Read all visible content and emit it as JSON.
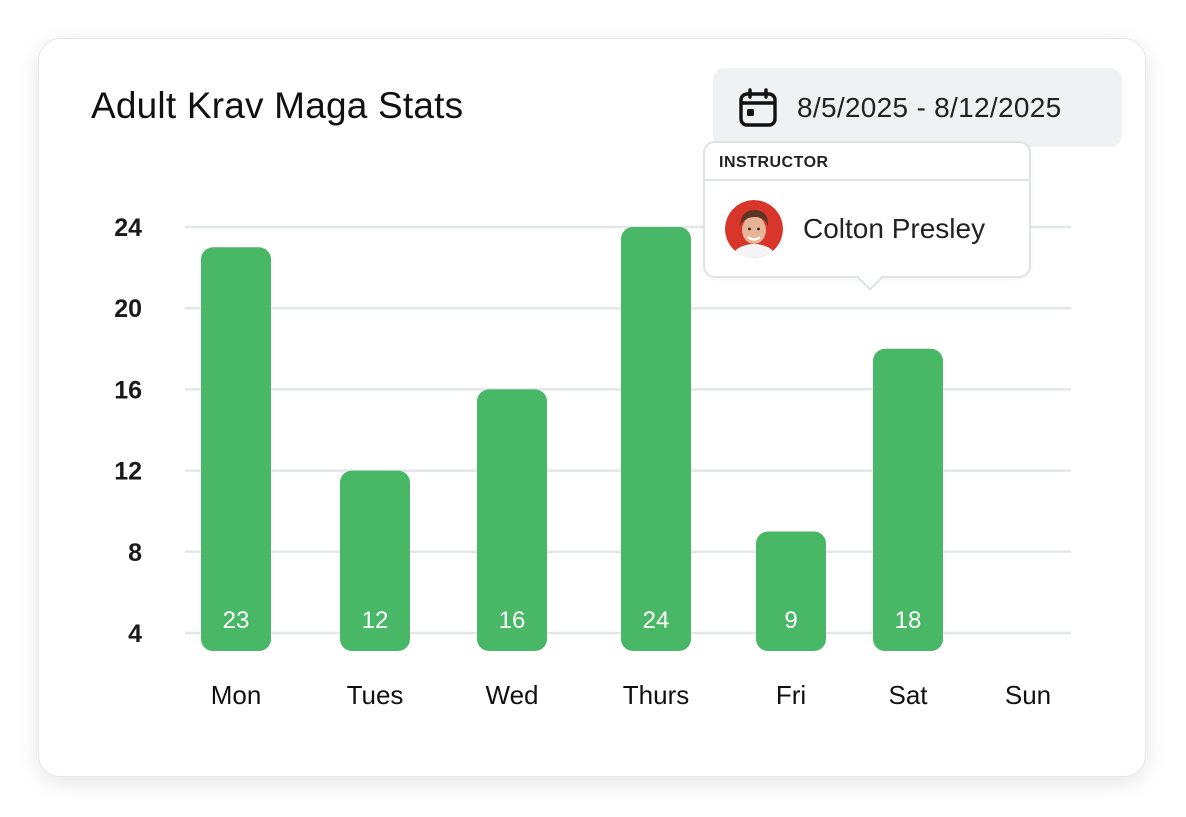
{
  "header": {
    "title": "Adult Krav Maga Stats",
    "date_range": "8/5/2025 - 8/12/2025",
    "date_icon": "calendar-icon"
  },
  "tooltip": {
    "label": "INSTRUCTOR",
    "name": "Colton Presley"
  },
  "colors": {
    "bar": "#49b866",
    "grid": "#e3e7e9",
    "tick_text": "#1a1a1a"
  },
  "chart_data": {
    "type": "bar",
    "title": "Adult Krav Maga Stats",
    "categories": [
      "Mon",
      "Tues",
      "Wed",
      "Thurs",
      "Fri",
      "Sat",
      "Sun"
    ],
    "values": [
      23,
      12,
      16,
      24,
      9,
      18,
      null
    ],
    "data_labels": [
      "23",
      "12",
      "16",
      "24",
      "9",
      "18",
      ""
    ],
    "y_ticks": [
      4,
      8,
      12,
      16,
      20,
      24
    ],
    "ylim": [
      4,
      24
    ],
    "grid": true,
    "xlabel": "",
    "ylabel": ""
  }
}
